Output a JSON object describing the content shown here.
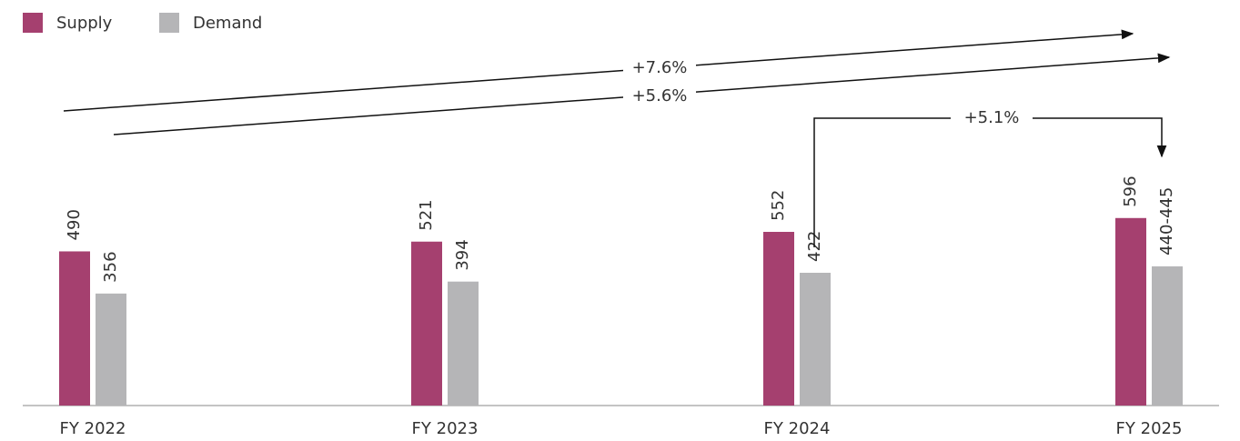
{
  "chart_data": {
    "type": "bar",
    "categories": [
      "FY 2022",
      "FY 2023",
      "FY 2024",
      "FY 2025"
    ],
    "series": [
      {
        "name": "Supply",
        "color": "#a5406f",
        "values": [
          490,
          521,
          552,
          596
        ]
      },
      {
        "name": "Demand",
        "color": "#b5b5b7",
        "values": [
          356,
          394,
          422,
          442.5
        ],
        "value_labels": [
          "356",
          "394",
          "422",
          "440-445"
        ]
      }
    ],
    "ylim": [
      0,
      1000
    ],
    "annotations": [
      "+7.6%",
      "+5.6%",
      "+5.1%"
    ]
  }
}
